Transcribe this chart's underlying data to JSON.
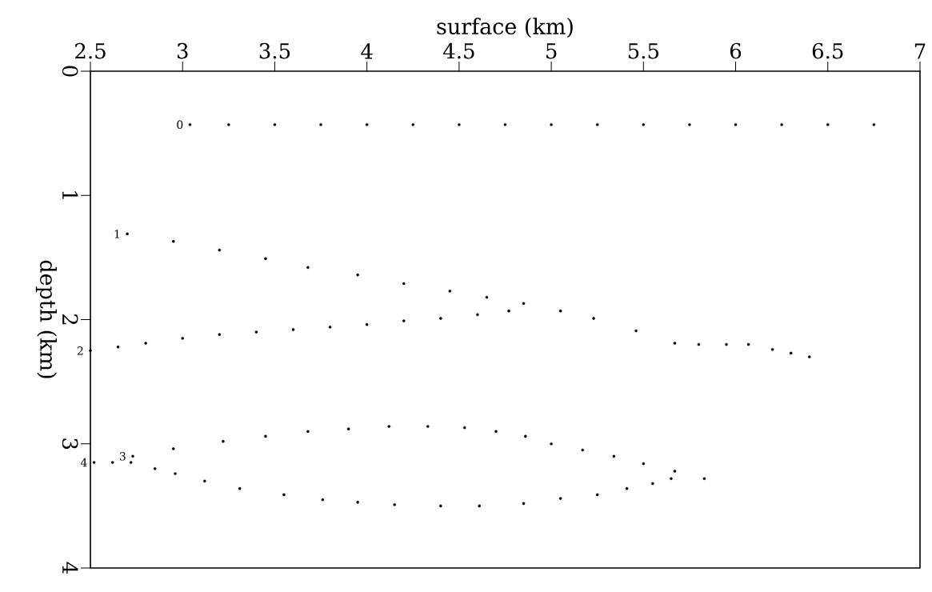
{
  "chart_data": {
    "type": "scatter",
    "xlabel": "surface (km)",
    "ylabel": "depth (km)",
    "xlim": [
      2.5,
      7
    ],
    "xticks": [
      2.5,
      3,
      3.5,
      4,
      4.5,
      5,
      5.5,
      6,
      6.5,
      7
    ],
    "ylim": [
      4,
      0
    ],
    "yticks": [
      0,
      1,
      2,
      3,
      4
    ],
    "grid": false,
    "legend": false,
    "marker": "circle",
    "series": [
      {
        "name": "0",
        "color": "#000000",
        "x": [
          3.04,
          3.25,
          3.5,
          3.75,
          4.0,
          4.25,
          4.5,
          4.75,
          5.0,
          5.25,
          5.5,
          5.75,
          6.0,
          6.25,
          6.5,
          6.75
        ],
        "values": [
          0.43,
          0.43,
          0.43,
          0.43,
          0.43,
          0.43,
          0.43,
          0.43,
          0.43,
          0.43,
          0.43,
          0.43,
          0.43,
          0.43,
          0.43,
          0.43
        ]
      },
      {
        "name": "1",
        "color": "#000000",
        "x": [
          2.7,
          2.95,
          3.2,
          3.45,
          3.68,
          3.95,
          4.2,
          4.45,
          4.65,
          4.85,
          5.05,
          5.23,
          5.46,
          5.67,
          5.8,
          5.95,
          6.07,
          6.2,
          6.3,
          6.4
        ],
        "values": [
          1.31,
          1.37,
          1.44,
          1.51,
          1.58,
          1.64,
          1.71,
          1.77,
          1.82,
          1.87,
          1.93,
          1.99,
          2.09,
          2.19,
          2.2,
          2.2,
          2.2,
          2.24,
          2.27,
          2.3
        ]
      },
      {
        "name": "2",
        "color": "#000000",
        "x": [
          2.5,
          2.65,
          2.8,
          3.0,
          3.2,
          3.4,
          3.6,
          3.8,
          4.0,
          4.2,
          4.4,
          4.6,
          4.77
        ],
        "values": [
          2.25,
          2.22,
          2.19,
          2.15,
          2.12,
          2.1,
          2.08,
          2.06,
          2.04,
          2.01,
          1.99,
          1.96,
          1.93
        ]
      },
      {
        "name": "3",
        "color": "#000000",
        "x": [
          2.73,
          2.95,
          3.22,
          3.45,
          3.68,
          3.9,
          4.12,
          4.33,
          4.53,
          4.7,
          4.86,
          5.0,
          5.17,
          5.34,
          5.5,
          5.67,
          5.83
        ],
        "values": [
          3.1,
          3.04,
          2.98,
          2.94,
          2.9,
          2.88,
          2.86,
          2.86,
          2.87,
          2.9,
          2.94,
          3.0,
          3.05,
          3.1,
          3.16,
          3.22,
          3.28
        ]
      },
      {
        "name": "4",
        "color": "#000000",
        "x": [
          2.52,
          2.62,
          2.72,
          2.85,
          2.96,
          3.12,
          3.31,
          3.55,
          3.76,
          3.95,
          4.15,
          4.4,
          4.61,
          4.85,
          5.05,
          5.25,
          5.41,
          5.55,
          5.65
        ],
        "values": [
          3.15,
          3.15,
          3.15,
          3.2,
          3.24,
          3.3,
          3.36,
          3.41,
          3.45,
          3.47,
          3.49,
          3.5,
          3.5,
          3.48,
          3.44,
          3.41,
          3.36,
          3.32,
          3.28
        ]
      }
    ]
  }
}
